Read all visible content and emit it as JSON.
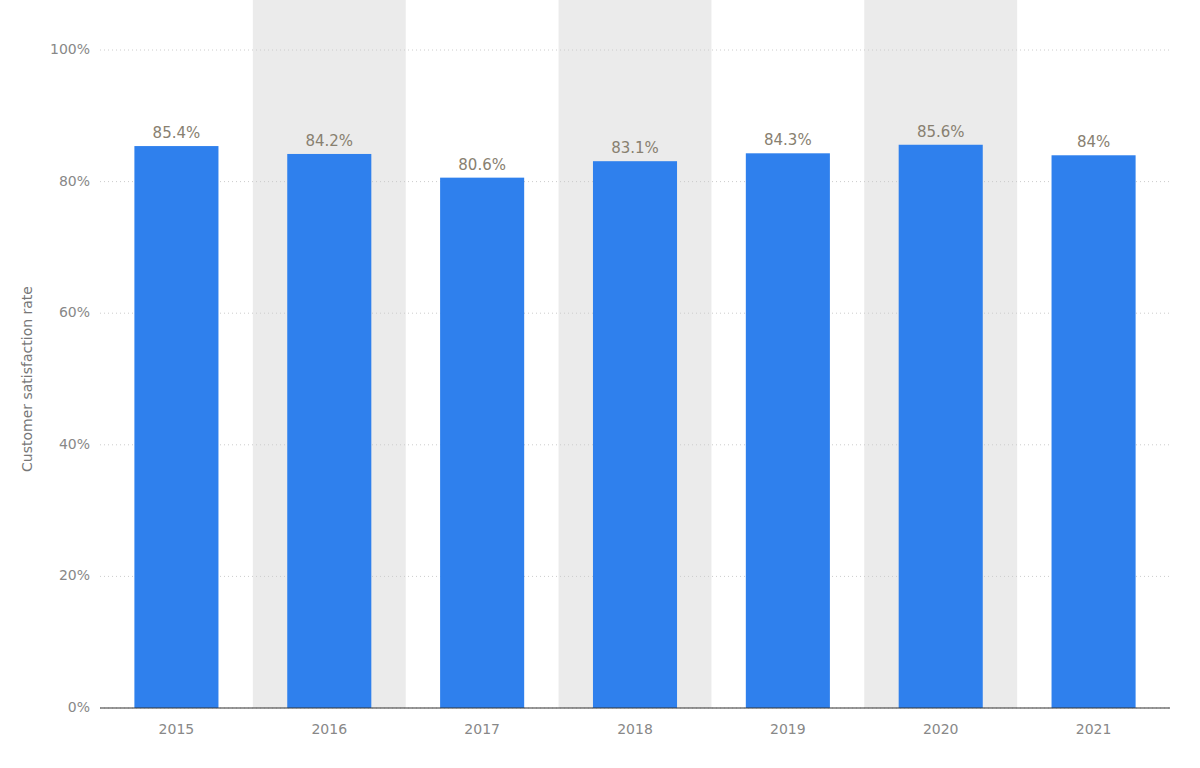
{
  "chart_data": {
    "type": "bar",
    "y_label": "Customer satisfaction rate",
    "categories": [
      "2015",
      "2016",
      "2017",
      "2018",
      "2019",
      "2020",
      "2021"
    ],
    "values": [
      85.4,
      84.2,
      80.6,
      83.1,
      84.3,
      85.6,
      84.0
    ],
    "value_labels": [
      "85.4%",
      "84.2%",
      "80.6%",
      "83.1%",
      "84.3%",
      "85.6%",
      "84%"
    ],
    "color": "#2F80ED",
    "ylim": [
      0,
      100
    ],
    "yticks": [
      {
        "value": 0,
        "label": "0%"
      },
      {
        "value": 20,
        "label": "20%"
      },
      {
        "value": 40,
        "label": "40%"
      },
      {
        "value": 60,
        "label": "60%"
      },
      {
        "value": 80,
        "label": "80%"
      },
      {
        "value": 100,
        "label": "100%"
      }
    ],
    "grid": true,
    "data_labels": true
  }
}
